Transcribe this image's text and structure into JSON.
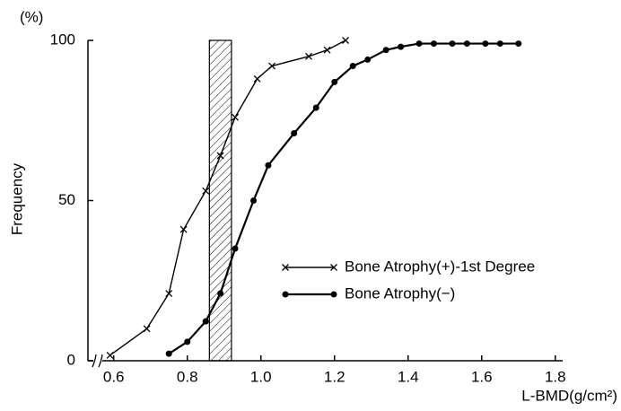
{
  "chart_data": {
    "type": "line",
    "y_unit": "(%)",
    "ylabel": "Frequency",
    "xlabel": "L-BMD(g/cm²)",
    "xlim": [
      0.53,
      1.82
    ],
    "xticks": [
      0.6,
      0.8,
      {
        "value": 1,
        "label": "1.0"
      },
      1.2,
      1.4,
      1.6,
      1.8
    ],
    "ylim": [
      0,
      100
    ],
    "yticks": [
      0,
      50,
      100
    ],
    "shaded_band": [
      0.86,
      0.92
    ],
    "series": [
      {
        "name": "Bone Atrophy(+)-1st Degree",
        "color": "#000000",
        "marker": "x",
        "x": [
          0.59,
          0.69,
          0.75,
          0.79,
          0.85,
          0.89,
          0.93,
          0.99,
          1.03,
          1.13,
          1.18,
          1.23
        ],
        "values": [
          1.7,
          10,
          21,
          41,
          53,
          64,
          76,
          88,
          92,
          95,
          97,
          100
        ]
      },
      {
        "name": "Bone Atrophy(−)",
        "color": "#000000",
        "marker": "dot",
        "x": [
          0.75,
          0.8,
          0.85,
          0.89,
          0.93,
          0.98,
          1.02,
          1.09,
          1.15,
          1.2,
          1.25,
          1.29,
          1.34,
          1.38,
          1.43,
          1.47,
          1.52,
          1.56,
          1.61,
          1.65,
          1.7
        ],
        "values": [
          2.2,
          5.9,
          12.3,
          21,
          35,
          50,
          61,
          71,
          79,
          87,
          92,
          94,
          97,
          98,
          99,
          99,
          99,
          99,
          99,
          99,
          99
        ]
      }
    ]
  }
}
